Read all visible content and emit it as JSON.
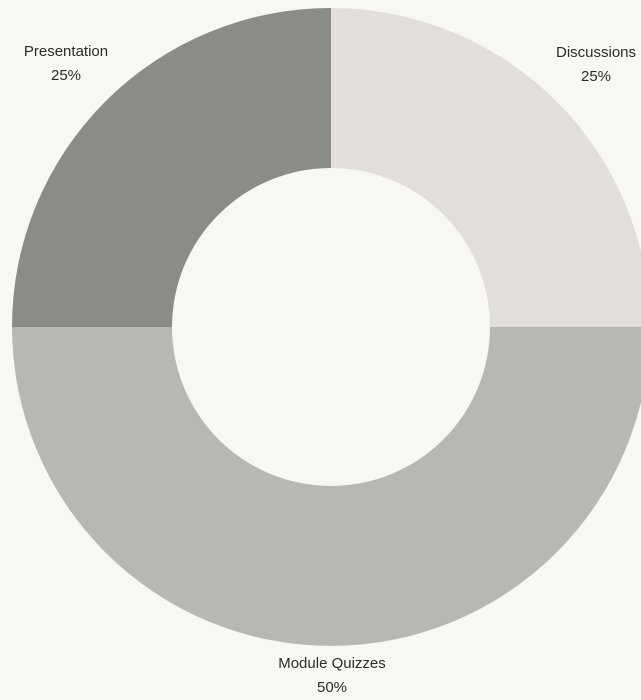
{
  "chart_data": {
    "type": "pie",
    "donut": true,
    "title": "",
    "slices": [
      {
        "label": "Discussions",
        "value": 25,
        "value_label": "25%",
        "color": "#e2dfda"
      },
      {
        "label": "Module Quizzes",
        "value": 50,
        "value_label": "50%",
        "color": "#b8b7b3"
      },
      {
        "label": "Presentation",
        "value": 25,
        "value_label": "25%",
        "color": "#8a8c87"
      }
    ],
    "start_angle_deg": 0,
    "direction": "clockwise",
    "background": "#f8f8f2"
  }
}
